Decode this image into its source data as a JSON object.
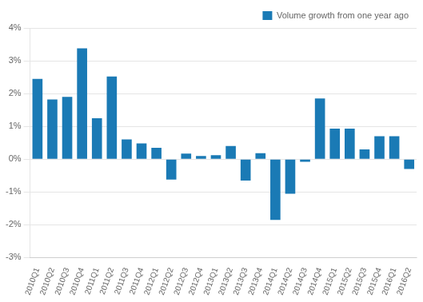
{
  "chart_data": {
    "type": "bar",
    "categories": [
      "2010Q1",
      "2010Q2",
      "2010Q3",
      "2010Q4",
      "2011Q1",
      "2011Q2",
      "2011Q3",
      "2011Q4",
      "2012Q1",
      "2012Q2",
      "2012Q3",
      "2012Q4",
      "2013Q1",
      "2013Q2",
      "2013Q3",
      "2013Q4",
      "2014Q1",
      "2014Q2",
      "2014Q3",
      "2014Q4",
      "2015Q1",
      "2015Q2",
      "2015Q3",
      "2015Q4",
      "2016Q1",
      "2016Q2"
    ],
    "series": [
      {
        "name": "Volume growth from one year ago",
        "color": "#1a7ab5",
        "values": [
          2.45,
          1.82,
          1.9,
          3.38,
          1.25,
          2.52,
          0.6,
          0.48,
          0.35,
          -0.62,
          0.17,
          0.1,
          0.12,
          0.4,
          -0.65,
          0.18,
          -1.85,
          -1.05,
          -0.08,
          1.85,
          0.93,
          0.93,
          0.3,
          0.7,
          0.7,
          -0.3
        ]
      }
    ],
    "ylim": [
      -3,
      4
    ],
    "yticks": [
      {
        "value": -3,
        "label": "-3%"
      },
      {
        "value": -2,
        "label": "-2%"
      },
      {
        "value": -1,
        "label": "-1%"
      },
      {
        "value": 0,
        "label": "0%"
      },
      {
        "value": 1,
        "label": "1%"
      },
      {
        "value": 2,
        "label": "2%"
      },
      {
        "value": 3,
        "label": "3%"
      },
      {
        "value": 4,
        "label": "4%"
      }
    ],
    "grid": true,
    "legend": "upper right"
  }
}
